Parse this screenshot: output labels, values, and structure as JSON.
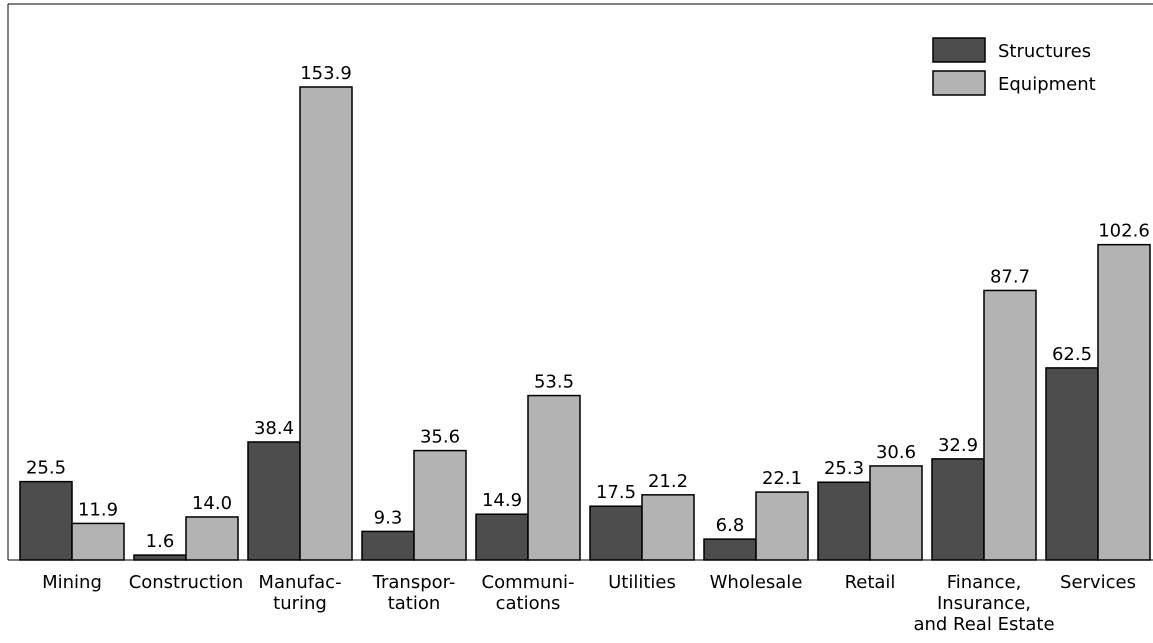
{
  "chart_data": {
    "type": "bar",
    "categories": [
      "Mining",
      "Construction",
      "Manufac-\nturing",
      "Transpor-\ntation",
      "Communi-\ncations",
      "Utilities",
      "Wholesale",
      "Retail",
      "Finance,\nInsurance,\nand Real Estate",
      "Services"
    ],
    "series": [
      {
        "name": "Structures",
        "color": "#4d4d4d",
        "values": [
          25.5,
          1.6,
          38.4,
          9.3,
          14.9,
          17.5,
          6.8,
          25.3,
          32.9,
          62.5
        ],
        "value_labels": [
          "25.5",
          "1.6",
          "38.4",
          "9.3",
          "14.9",
          "17.5",
          "6.8",
          "25.3",
          "32.9",
          "62.5"
        ]
      },
      {
        "name": "Equipment",
        "color": "#b3b3b3",
        "values": [
          11.9,
          14.0,
          153.9,
          35.6,
          53.5,
          21.2,
          22.1,
          30.6,
          87.7,
          102.6
        ],
        "value_labels": [
          "11.9",
          "14.0",
          "153.9",
          "35.6",
          "53.5",
          "21.2",
          "22.1",
          "30.6",
          "87.7",
          "102.6"
        ]
      }
    ],
    "legend": "upper right"
  }
}
